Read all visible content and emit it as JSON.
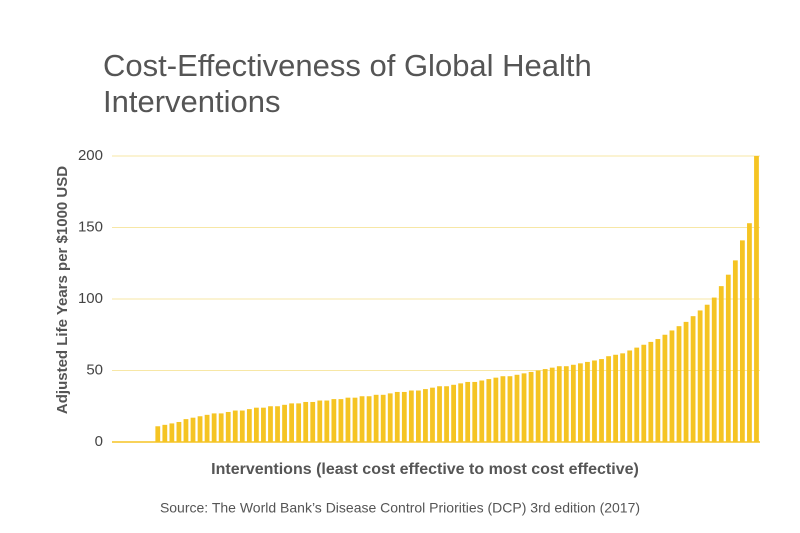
{
  "chart_data": {
    "type": "bar",
    "title": "Cost-Effectiveness of Global Health Interventions",
    "x_label": "Interventions (least cost effective to most cost effective)",
    "y_label": "Adjusted Life Years per $1000 USD",
    "source": "Source: The World Bank’s Disease Control Priorities (DCP) 3rd edition (2017)",
    "color": "#f5c423",
    "grid": true,
    "ylim": [
      0,
      200
    ],
    "yticks": [
      0,
      50,
      100,
      150,
      200
    ],
    "categories": [
      null,
      null,
      null,
      null,
      null,
      null,
      null,
      null,
      null,
      null,
      null,
      null,
      null,
      null,
      null,
      null,
      null,
      null,
      null,
      null,
      null,
      null,
      null,
      null,
      null,
      null,
      null,
      null,
      null,
      null,
      null,
      null,
      null,
      null,
      null,
      null,
      null,
      null,
      null,
      null,
      null,
      null,
      null,
      null,
      null,
      null,
      null,
      null,
      null,
      null,
      null,
      null,
      null,
      null,
      null,
      null,
      null,
      null,
      null,
      null,
      null,
      null,
      null,
      null,
      null,
      null,
      null,
      null,
      null,
      null,
      null,
      null,
      null,
      null,
      null,
      null,
      null,
      null,
      null,
      null,
      null,
      null,
      null,
      null,
      null,
      null,
      null,
      null,
      null,
      null,
      null,
      null
    ],
    "values": [
      0,
      0,
      0,
      0,
      0,
      0,
      11,
      12,
      13,
      14,
      16,
      17,
      18,
      19,
      20,
      20,
      21,
      22,
      22,
      23,
      24,
      24,
      25,
      25,
      26,
      27,
      27,
      28,
      28,
      29,
      29,
      30,
      30,
      31,
      31,
      32,
      32,
      33,
      33,
      34,
      35,
      35,
      36,
      36,
      37,
      38,
      39,
      39,
      40,
      41,
      42,
      42,
      43,
      44,
      45,
      46,
      46,
      47,
      48,
      49,
      50,
      51,
      52,
      53,
      53,
      54,
      55,
      56,
      57,
      58,
      60,
      61,
      62,
      64,
      66,
      68,
      70,
      72,
      75,
      78,
      81,
      84,
      88,
      92,
      96,
      101,
      109,
      117,
      127,
      141,
      153,
      200
    ]
  }
}
